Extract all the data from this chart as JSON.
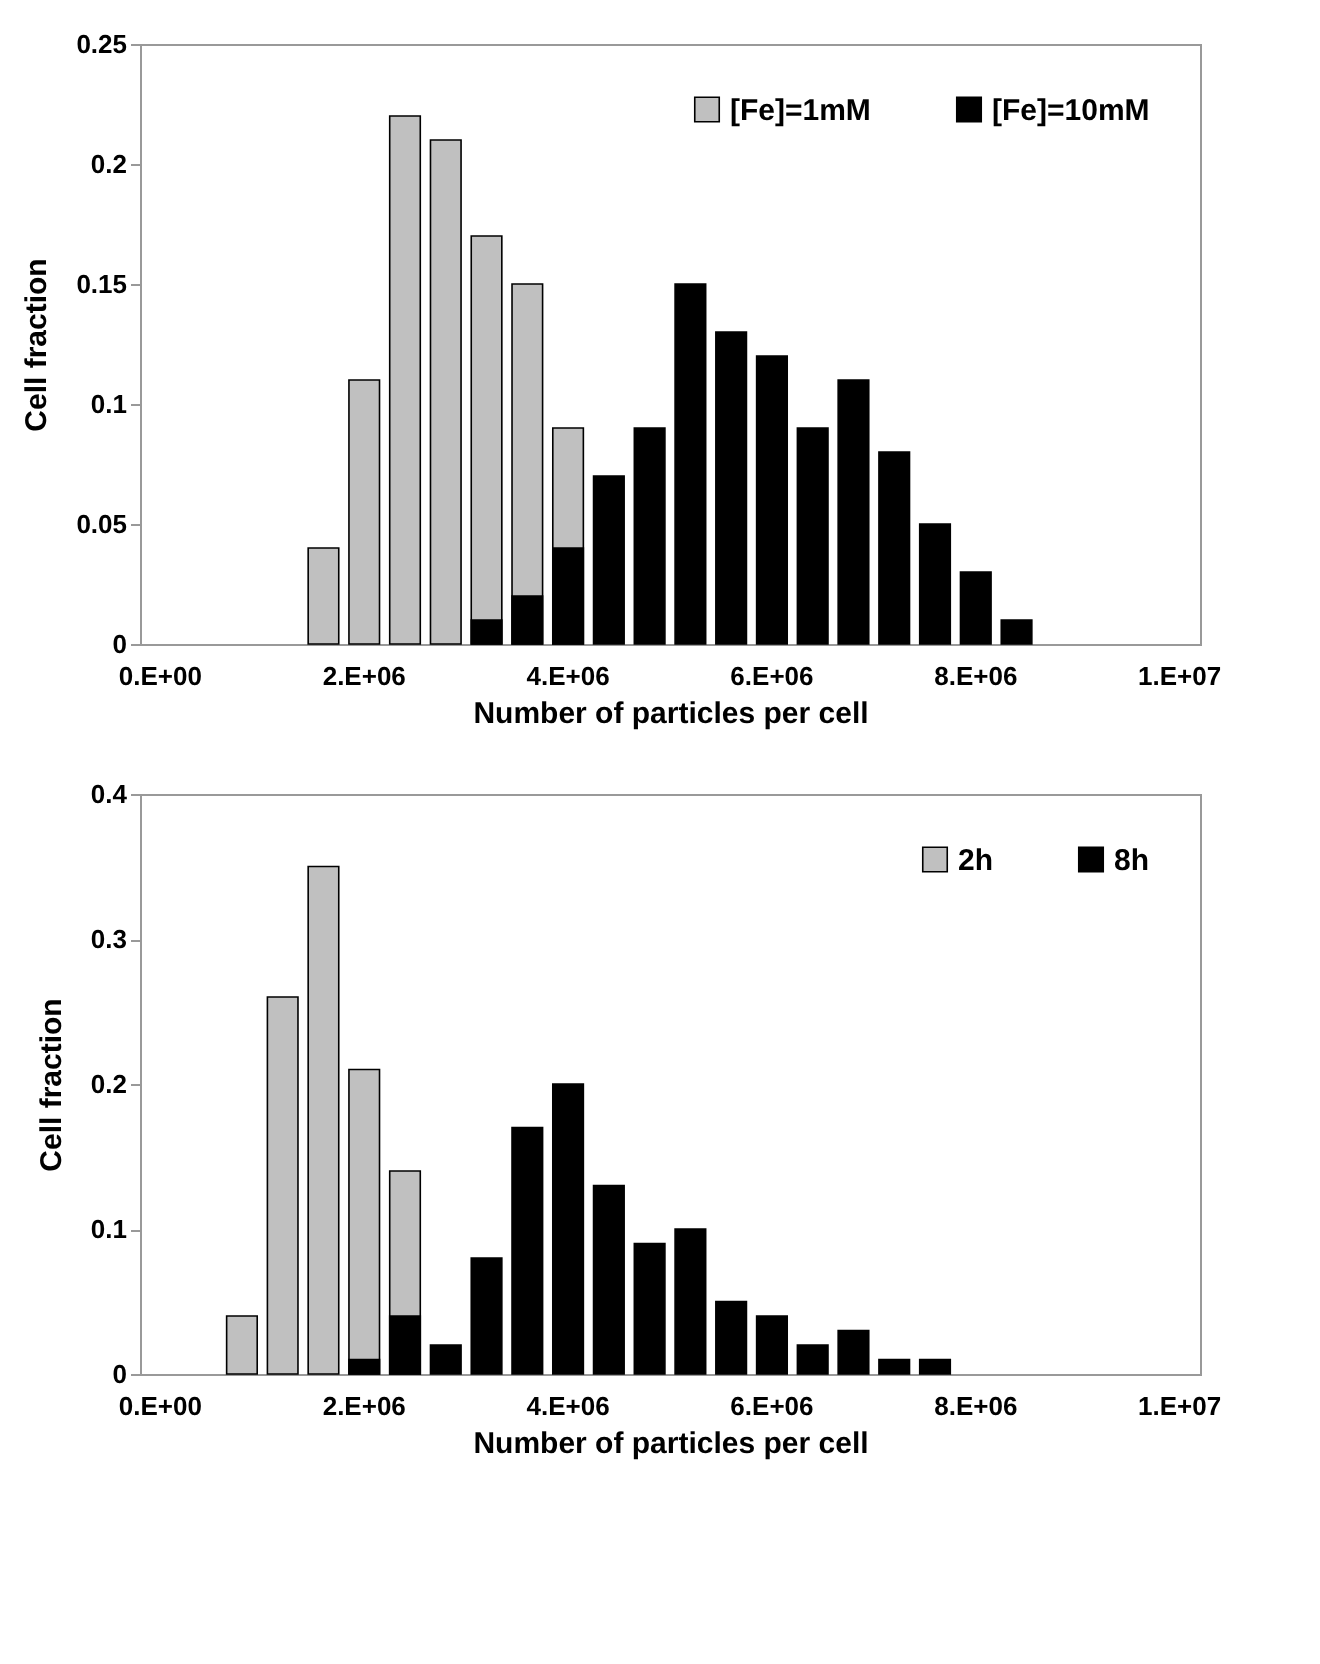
{
  "chart_data": [
    {
      "type": "bar",
      "xlabel": "Number of particles per cell",
      "ylabel": "Cell fraction",
      "categories": [
        "0.E+00",
        null,
        null,
        null,
        null,
        "2.E+06",
        null,
        null,
        null,
        null,
        "4.E+06",
        null,
        null,
        null,
        null,
        "6.E+06",
        null,
        null,
        null,
        null,
        "8.E+06",
        null,
        null,
        null,
        null,
        "1.E+07"
      ],
      "series": [
        {
          "name": "[Fe]=1mM",
          "color": "#c0c0c0",
          "values": [
            null,
            null,
            null,
            null,
            0.04,
            0.11,
            0.22,
            0.21,
            0.17,
            0.15,
            0.09,
            null,
            null,
            null,
            null,
            null,
            null,
            null,
            null,
            null,
            null,
            null,
            null,
            null,
            null,
            null
          ]
        },
        {
          "name": "[Fe]=10mM",
          "color": "#000000",
          "values": [
            null,
            null,
            null,
            null,
            null,
            null,
            null,
            null,
            0.01,
            0.02,
            0.04,
            0.07,
            0.09,
            0.15,
            0.13,
            0.12,
            0.09,
            0.11,
            0.08,
            0.05,
            0.03,
            0.01,
            null,
            null,
            null,
            null
          ]
        }
      ],
      "ylim": [
        0,
        0.25
      ],
      "yticks": [
        0,
        0.05,
        0.1,
        0.15,
        0.2,
        0.25
      ],
      "legend": "top right"
    },
    {
      "type": "bar",
      "xlabel": "Number of particles per cell",
      "ylabel": "Cell fraction",
      "categories": [
        "0.E+00",
        null,
        null,
        null,
        null,
        "2.E+06",
        null,
        null,
        null,
        null,
        "4.E+06",
        null,
        null,
        null,
        null,
        "6.E+06",
        null,
        null,
        null,
        null,
        "8.E+06",
        null,
        null,
        null,
        null,
        "1.E+07"
      ],
      "series": [
        {
          "name": "2h",
          "color": "#c0c0c0",
          "values": [
            null,
            null,
            0.04,
            0.26,
            0.35,
            0.21,
            0.14,
            null,
            null,
            null,
            null,
            null,
            null,
            null,
            null,
            null,
            null,
            null,
            null,
            null,
            null,
            null,
            null,
            null,
            null,
            null
          ]
        },
        {
          "name": "8h",
          "color": "#000000",
          "values": [
            null,
            null,
            null,
            null,
            null,
            0.01,
            0.04,
            0.02,
            0.08,
            0.17,
            0.2,
            0.13,
            0.09,
            0.1,
            0.05,
            0.04,
            0.02,
            0.03,
            0.01,
            0.01,
            null,
            null,
            null,
            null,
            null,
            null
          ]
        }
      ],
      "ylim": [
        0,
        0.4
      ],
      "yticks": [
        0,
        0.1,
        0.2,
        0.3,
        0.4
      ],
      "legend": "top right"
    }
  ]
}
